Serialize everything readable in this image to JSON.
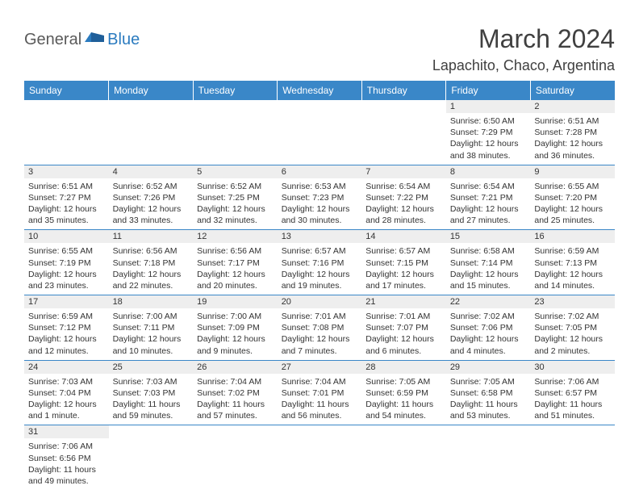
{
  "logo": {
    "general": "General",
    "blue": "Blue"
  },
  "title": "March 2024",
  "location": "Lapachito, Chaco, Argentina",
  "colors": {
    "header_bg": "#3a87c8",
    "header_text": "#ffffff",
    "daynum_bg": "#eeeeee",
    "border": "#3a87c8",
    "body_text": "#333333",
    "logo_gray": "#5a5a5a",
    "logo_blue": "#2b7bbf"
  },
  "columns": [
    "Sunday",
    "Monday",
    "Tuesday",
    "Wednesday",
    "Thursday",
    "Friday",
    "Saturday"
  ],
  "weeks": [
    [
      null,
      null,
      null,
      null,
      null,
      {
        "n": "1",
        "sr": "6:50 AM",
        "ss": "7:29 PM",
        "dl": "12 hours and 38 minutes."
      },
      {
        "n": "2",
        "sr": "6:51 AM",
        "ss": "7:28 PM",
        "dl": "12 hours and 36 minutes."
      }
    ],
    [
      {
        "n": "3",
        "sr": "6:51 AM",
        "ss": "7:27 PM",
        "dl": "12 hours and 35 minutes."
      },
      {
        "n": "4",
        "sr": "6:52 AM",
        "ss": "7:26 PM",
        "dl": "12 hours and 33 minutes."
      },
      {
        "n": "5",
        "sr": "6:52 AM",
        "ss": "7:25 PM",
        "dl": "12 hours and 32 minutes."
      },
      {
        "n": "6",
        "sr": "6:53 AM",
        "ss": "7:23 PM",
        "dl": "12 hours and 30 minutes."
      },
      {
        "n": "7",
        "sr": "6:54 AM",
        "ss": "7:22 PM",
        "dl": "12 hours and 28 minutes."
      },
      {
        "n": "8",
        "sr": "6:54 AM",
        "ss": "7:21 PM",
        "dl": "12 hours and 27 minutes."
      },
      {
        "n": "9",
        "sr": "6:55 AM",
        "ss": "7:20 PM",
        "dl": "12 hours and 25 minutes."
      }
    ],
    [
      {
        "n": "10",
        "sr": "6:55 AM",
        "ss": "7:19 PM",
        "dl": "12 hours and 23 minutes."
      },
      {
        "n": "11",
        "sr": "6:56 AM",
        "ss": "7:18 PM",
        "dl": "12 hours and 22 minutes."
      },
      {
        "n": "12",
        "sr": "6:56 AM",
        "ss": "7:17 PM",
        "dl": "12 hours and 20 minutes."
      },
      {
        "n": "13",
        "sr": "6:57 AM",
        "ss": "7:16 PM",
        "dl": "12 hours and 19 minutes."
      },
      {
        "n": "14",
        "sr": "6:57 AM",
        "ss": "7:15 PM",
        "dl": "12 hours and 17 minutes."
      },
      {
        "n": "15",
        "sr": "6:58 AM",
        "ss": "7:14 PM",
        "dl": "12 hours and 15 minutes."
      },
      {
        "n": "16",
        "sr": "6:59 AM",
        "ss": "7:13 PM",
        "dl": "12 hours and 14 minutes."
      }
    ],
    [
      {
        "n": "17",
        "sr": "6:59 AM",
        "ss": "7:12 PM",
        "dl": "12 hours and 12 minutes."
      },
      {
        "n": "18",
        "sr": "7:00 AM",
        "ss": "7:11 PM",
        "dl": "12 hours and 10 minutes."
      },
      {
        "n": "19",
        "sr": "7:00 AM",
        "ss": "7:09 PM",
        "dl": "12 hours and 9 minutes."
      },
      {
        "n": "20",
        "sr": "7:01 AM",
        "ss": "7:08 PM",
        "dl": "12 hours and 7 minutes."
      },
      {
        "n": "21",
        "sr": "7:01 AM",
        "ss": "7:07 PM",
        "dl": "12 hours and 6 minutes."
      },
      {
        "n": "22",
        "sr": "7:02 AM",
        "ss": "7:06 PM",
        "dl": "12 hours and 4 minutes."
      },
      {
        "n": "23",
        "sr": "7:02 AM",
        "ss": "7:05 PM",
        "dl": "12 hours and 2 minutes."
      }
    ],
    [
      {
        "n": "24",
        "sr": "7:03 AM",
        "ss": "7:04 PM",
        "dl": "12 hours and 1 minute."
      },
      {
        "n": "25",
        "sr": "7:03 AM",
        "ss": "7:03 PM",
        "dl": "11 hours and 59 minutes."
      },
      {
        "n": "26",
        "sr": "7:04 AM",
        "ss": "7:02 PM",
        "dl": "11 hours and 57 minutes."
      },
      {
        "n": "27",
        "sr": "7:04 AM",
        "ss": "7:01 PM",
        "dl": "11 hours and 56 minutes."
      },
      {
        "n": "28",
        "sr": "7:05 AM",
        "ss": "6:59 PM",
        "dl": "11 hours and 54 minutes."
      },
      {
        "n": "29",
        "sr": "7:05 AM",
        "ss": "6:58 PM",
        "dl": "11 hours and 53 minutes."
      },
      {
        "n": "30",
        "sr": "7:06 AM",
        "ss": "6:57 PM",
        "dl": "11 hours and 51 minutes."
      }
    ],
    [
      {
        "n": "31",
        "sr": "7:06 AM",
        "ss": "6:56 PM",
        "dl": "11 hours and 49 minutes."
      },
      null,
      null,
      null,
      null,
      null,
      null
    ]
  ],
  "labels": {
    "sunrise": "Sunrise: ",
    "sunset": "Sunset: ",
    "daylight": "Daylight: "
  }
}
